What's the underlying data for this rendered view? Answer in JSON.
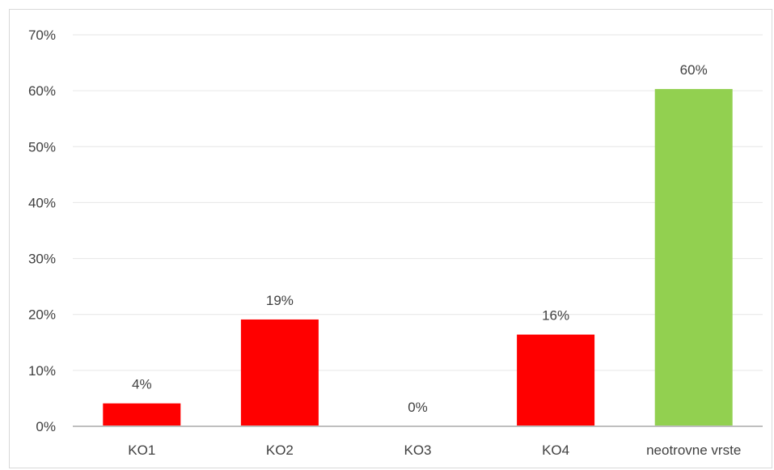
{
  "chart_data": {
    "type": "bar",
    "categories": [
      "KO1",
      "KO2",
      "KO3",
      "KO4",
      "neotrovne vrste"
    ],
    "values": [
      4,
      19,
      0,
      16,
      60
    ],
    "plotted_values": [
      4.1,
      19.1,
      0,
      16.4,
      60.3
    ],
    "data_labels": [
      "4%",
      "19%",
      "0%",
      "16%",
      "60%"
    ],
    "bar_colors": [
      "#ff0000",
      "#ff0000",
      "#ff0000",
      "#ff0000",
      "#92d050"
    ],
    "title": "",
    "xlabel": "",
    "ylabel": "",
    "ylim": [
      0,
      70
    ],
    "y_ticks": [
      0,
      10,
      20,
      30,
      40,
      50,
      60,
      70
    ],
    "y_tick_labels": [
      "0%",
      "10%",
      "20%",
      "30%",
      "40%",
      "50%",
      "60%",
      "70%"
    ],
    "grid": true,
    "legend": "none"
  }
}
